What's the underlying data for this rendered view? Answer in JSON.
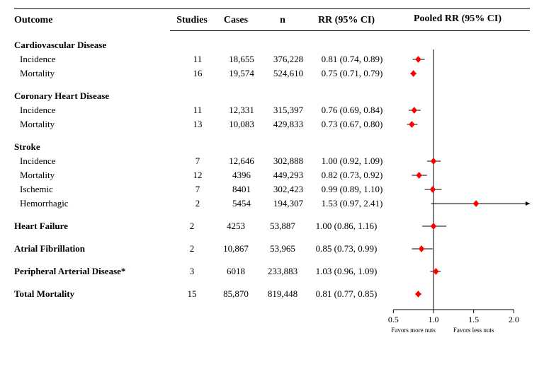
{
  "headers": {
    "outcome": "Outcome",
    "studies": "Studies",
    "cases": "Cases",
    "n": "n",
    "rr": "RR (95% CI)",
    "pooled": "Pooled RR (95% CI)"
  },
  "groups": [
    {
      "title": "Cardiovascular Disease",
      "rows": [
        {
          "label": "Incidence",
          "studies": "11",
          "cases": "18,655",
          "n": "376,228",
          "rr": "0.81 (0.74, 0.89)",
          "pt": 0.81,
          "lo": 0.74,
          "hi": 0.89
        },
        {
          "label": "Mortality",
          "studies": "16",
          "cases": "19,574",
          "n": "524,610",
          "rr": "0.75 (0.71, 0.79)",
          "pt": 0.75,
          "lo": 0.71,
          "hi": 0.79
        }
      ]
    },
    {
      "title": "Coronary Heart Disease",
      "rows": [
        {
          "label": "Incidence",
          "studies": "11",
          "cases": "12,331",
          "n": "315,397",
          "rr": "0.76 (0.69, 0.84)",
          "pt": 0.76,
          "lo": 0.69,
          "hi": 0.84
        },
        {
          "label": "Mortality",
          "studies": "13",
          "cases": "10,083",
          "n": "429,833",
          "rr": "0.73 (0.67, 0.80)",
          "pt": 0.73,
          "lo": 0.67,
          "hi": 0.8
        }
      ]
    },
    {
      "title": "Stroke",
      "rows": [
        {
          "label": "Incidence",
          "studies": "7",
          "cases": "12,646",
          "n": "302,888",
          "rr": "1.00 (0.92, 1.09)",
          "pt": 1.0,
          "lo": 0.92,
          "hi": 1.09
        },
        {
          "label": "Mortality",
          "studies": "12",
          "cases": "4396",
          "n": "449,293",
          "rr": "0.82 (0.73, 0.92)",
          "pt": 0.82,
          "lo": 0.73,
          "hi": 0.92
        },
        {
          "label": "Ischemic",
          "studies": "7",
          "cases": "8401",
          "n": "302,423",
          "rr": "0.99 (0.89, 1.10)",
          "pt": 0.99,
          "lo": 0.89,
          "hi": 1.1
        },
        {
          "label": "Hemorrhagic",
          "studies": "2",
          "cases": "5454",
          "n": "194,307",
          "rr": "1.53 (0.97, 2.41)",
          "pt": 1.53,
          "lo": 0.97,
          "hi": 2.41,
          "arrow": true
        }
      ]
    },
    {
      "title": "Heart Failure",
      "bold": true,
      "rows": [
        {
          "label": "",
          "studies": "2",
          "cases": "4253",
          "n": "53,887",
          "rr": "1.00 (0.86, 1.16)",
          "pt": 1.0,
          "lo": 0.86,
          "hi": 1.16
        }
      ]
    },
    {
      "title": "Atrial Fibrillation",
      "bold": true,
      "rows": [
        {
          "label": "",
          "studies": "2",
          "cases": "10,867",
          "n": "53,965",
          "rr": "0.85 (0.73, 0.99)",
          "pt": 0.85,
          "lo": 0.73,
          "hi": 0.99
        }
      ]
    },
    {
      "title": "Peripheral Arterial Disease*",
      "bold": true,
      "rows": [
        {
          "label": "",
          "studies": "3",
          "cases": "6018",
          "n": "233,883",
          "rr": "1.03 (0.96, 1.09)",
          "pt": 1.03,
          "lo": 0.96,
          "hi": 1.09
        }
      ]
    },
    {
      "title": "Total Mortality",
      "bold": true,
      "rows": [
        {
          "label": "",
          "studies": "15",
          "cases": "85,870",
          "n": "819,448",
          "rr": "0.81 (0.77, 0.85)",
          "pt": 0.81,
          "lo": 0.77,
          "hi": 0.85
        }
      ]
    }
  ],
  "plot": {
    "xticks": [
      0.5,
      1.0,
      1.5,
      2.0
    ],
    "xtick_labels": [
      "0.5",
      "1.0",
      "1.5",
      "2.0"
    ],
    "xmin": 0.4,
    "xmax": 2.2,
    "ref_line": 1.0,
    "marker_color": "#ff0000",
    "marker_size": 10,
    "line_color": "#000000",
    "line_width": 1,
    "axis_color": "#000000",
    "left_caption": "Favors more nuts",
    "right_caption": "Favors less nuts"
  }
}
